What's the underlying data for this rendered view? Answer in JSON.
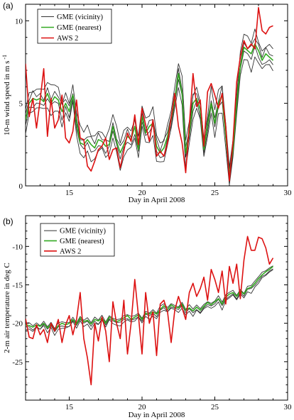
{
  "chart_data": [
    {
      "panel_label": "(a)",
      "type": "line",
      "xlabel": "Day in April 2008",
      "ylabel": "10-m wind speed in m s",
      "ylabel_sup": "-1",
      "xlim": [
        12,
        30
      ],
      "ylim": [
        0,
        11
      ],
      "xticks": [
        15,
        20,
        25,
        30
      ],
      "yticks": [
        0,
        5,
        10
      ],
      "grid": false,
      "legend_position": "top-left",
      "legend": [
        "GME (vicinity)",
        "GME (nearest)",
        "AWS 2"
      ],
      "colors": {
        "vicinity": "#333333",
        "nearest": "#33aa22",
        "aws": "#dd1111"
      },
      "x": [
        12.0,
        12.25,
        12.5,
        12.75,
        13.0,
        13.25,
        13.5,
        13.75,
        14.0,
        14.25,
        14.5,
        14.75,
        15.0,
        15.25,
        15.5,
        15.75,
        16.0,
        16.25,
        16.5,
        16.75,
        17.0,
        17.25,
        17.5,
        17.75,
        18.0,
        18.25,
        18.5,
        18.75,
        19.0,
        19.25,
        19.5,
        19.75,
        20.0,
        20.25,
        20.5,
        20.75,
        21.0,
        21.25,
        21.5,
        21.75,
        22.0,
        22.25,
        22.5,
        22.75,
        23.0,
        23.25,
        23.5,
        23.75,
        24.0,
        24.25,
        24.5,
        24.75,
        25.0,
        25.25,
        25.5,
        25.75,
        26.0,
        26.25,
        26.5,
        26.75,
        27.0,
        27.25,
        27.5,
        27.75,
        28.0,
        28.25,
        28.5,
        28.75,
        29.0
      ],
      "series": [
        {
          "name": "GME (nearest)",
          "values": [
            4.0,
            5.0,
            5.3,
            5.2,
            5.3,
            5.1,
            5.6,
            5.0,
            5.4,
            5.2,
            4.5,
            5.0,
            4.5,
            5.5,
            3.8,
            2.6,
            2.5,
            2.8,
            2.5,
            2.3,
            2.8,
            2.7,
            2.4,
            2.5,
            3.6,
            2.7,
            2.0,
            2.5,
            3.0,
            2.8,
            3.6,
            2.2,
            4.2,
            3.2,
            3.6,
            3.8,
            2.4,
            2.0,
            2.3,
            3.0,
            4.0,
            5.2,
            6.8,
            5.6,
            2.0,
            3.2,
            5.0,
            5.3,
            4.6,
            2.2,
            3.7,
            5.0,
            3.8,
            5.0,
            5.5,
            3.0,
            0.7,
            2.2,
            5.0,
            7.2,
            8.4,
            8.2,
            8.0,
            8.6,
            8.2,
            7.6,
            8.0,
            7.8,
            7.6
          ]
        },
        {
          "name": "AWS 2",
          "values": [
            7.4,
            4.2,
            5.3,
            3.5,
            5.2,
            7.1,
            3.0,
            5.3,
            3.5,
            4.0,
            5.5,
            2.9,
            2.6,
            3.3,
            5.2,
            2.9,
            2.8,
            1.2,
            0.9,
            1.5,
            2.2,
            2.4,
            2.9,
            1.6,
            2.2,
            2.3,
            1.1,
            2.1,
            3.2,
            2.7,
            4.3,
            2.5,
            4.7,
            3.7,
            2.7,
            4.0,
            1.8,
            2.1,
            1.8,
            2.6,
            4.1,
            5.6,
            3.6,
            2.6,
            0.8,
            3.7,
            6.8,
            4.8,
            5.2,
            2.4,
            5.7,
            6.2,
            5.5,
            4.7,
            5.6,
            3.6,
            0.3,
            2.7,
            6.3,
            7.8,
            8.8,
            8.3,
            8.6,
            8.3,
            10.8,
            9.4,
            9.2,
            9.6,
            9.7
          ]
        }
      ],
      "vicinity_members": [
        [
          -0.35,
          -0.2,
          -0.45,
          -0.15,
          -0.3,
          -0.25,
          -0.4,
          -0.1
        ],
        [
          0.3,
          0.15,
          0.4,
          0.2,
          0.35,
          0.1,
          0.45,
          0.25
        ],
        [
          -0.7,
          -0.55,
          -0.85,
          -0.6,
          -0.75,
          -0.5,
          -0.9,
          -0.65
        ],
        [
          0.6,
          0.75,
          0.5,
          0.85,
          0.65,
          0.7,
          0.55,
          0.9
        ]
      ]
    },
    {
      "panel_label": "(b)",
      "type": "line",
      "xlabel": "Day in April 2008",
      "ylabel": "2-m air temperature in deg C",
      "xlim": [
        12,
        30
      ],
      "ylim": [
        -30,
        -6
      ],
      "xticks": [
        15,
        20,
        25,
        30
      ],
      "yticks": [
        -25,
        -20,
        -15,
        -10
      ],
      "grid": false,
      "legend_position": "top-left",
      "legend": [
        "GME (vicinity)",
        "GME (nearest)",
        "AWS 2"
      ],
      "colors": {
        "vicinity": "#333333",
        "nearest": "#33aa22",
        "aws": "#dd1111"
      },
      "x": [
        12.0,
        12.25,
        12.5,
        12.75,
        13.0,
        13.25,
        13.5,
        13.75,
        14.0,
        14.25,
        14.5,
        14.75,
        15.0,
        15.25,
        15.5,
        15.75,
        16.0,
        16.25,
        16.5,
        16.75,
        17.0,
        17.25,
        17.5,
        17.75,
        18.0,
        18.25,
        18.5,
        18.75,
        19.0,
        19.25,
        19.5,
        19.75,
        20.0,
        20.25,
        20.5,
        20.75,
        21.0,
        21.25,
        21.5,
        21.75,
        22.0,
        22.25,
        22.5,
        22.75,
        23.0,
        23.25,
        23.5,
        23.75,
        24.0,
        24.25,
        24.5,
        24.75,
        25.0,
        25.25,
        25.5,
        25.75,
        26.0,
        26.25,
        26.5,
        26.75,
        27.0,
        27.25,
        27.5,
        27.75,
        28.0,
        28.25,
        28.5,
        28.75,
        29.0
      ],
      "series": [
        {
          "name": "GME (nearest)",
          "values": [
            -20.2,
            -20.3,
            -20.5,
            -20.2,
            -20.4,
            -20.0,
            -20.6,
            -20.1,
            -20.9,
            -20.3,
            -20.0,
            -20.2,
            -20.0,
            -19.5,
            -20.1,
            -19.3,
            -19.8,
            -19.6,
            -20.1,
            -19.5,
            -19.7,
            -19.3,
            -20.0,
            -19.2,
            -19.5,
            -19.8,
            -19.6,
            -19.3,
            -19.0,
            -19.5,
            -19.2,
            -18.9,
            -19.5,
            -18.7,
            -18.8,
            -18.5,
            -18.8,
            -18.2,
            -17.7,
            -18.2,
            -17.6,
            -17.9,
            -18.0,
            -17.5,
            -18.3,
            -18.0,
            -18.4,
            -17.9,
            -18.3,
            -17.8,
            -17.3,
            -17.6,
            -17.2,
            -16.8,
            -17.5,
            -16.6,
            -16.2,
            -16.0,
            -16.5,
            -15.8,
            -16.2,
            -15.5,
            -15.3,
            -14.8,
            -14.2,
            -13.7,
            -13.3,
            -13.0,
            -12.6
          ]
        },
        {
          "name": "AWS 2",
          "values": [
            -19.4,
            -21.8,
            -22.0,
            -20.2,
            -21.5,
            -20.8,
            -22.5,
            -20.0,
            -21.0,
            -19.5,
            -22.5,
            -20.2,
            -19.0,
            -21.5,
            -19.5,
            -16.0,
            -22.0,
            -24.5,
            -28.0,
            -20.0,
            -22.3,
            -19.2,
            -21.0,
            -25.0,
            -17.2,
            -20.0,
            -22.0,
            -17.0,
            -24.0,
            -20.0,
            -14.3,
            -19.0,
            -24.0,
            -16.0,
            -20.0,
            -18.5,
            -24.2,
            -17.5,
            -17.0,
            -18.5,
            -22.5,
            -18.3,
            -16.5,
            -18.0,
            -19.5,
            -16.0,
            -14.8,
            -16.5,
            -15.5,
            -14.0,
            -17.0,
            -13.0,
            -14.3,
            -16.0,
            -13.2,
            -17.5,
            -12.6,
            -14.8,
            -12.3,
            -16.8,
            -11.8,
            -8.7,
            -10.5,
            -10.5,
            -8.8,
            -9.0,
            -10.2,
            -12.3,
            -11.5
          ]
        }
      ],
      "vicinity_members": [
        [
          -0.25,
          -0.15,
          -0.3,
          -0.2,
          -0.35,
          -0.1,
          -0.2,
          -0.25
        ],
        [
          0.2,
          0.3,
          0.15,
          0.25,
          0.1,
          0.35,
          0.2,
          0.25
        ],
        [
          -0.55,
          -0.4,
          -0.6,
          -0.45,
          -0.5,
          -0.35,
          -0.65,
          -0.4
        ]
      ]
    }
  ]
}
